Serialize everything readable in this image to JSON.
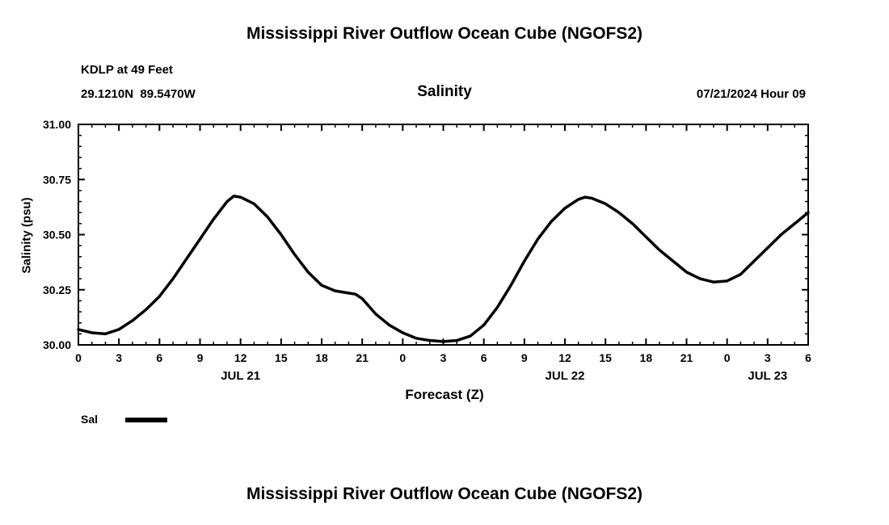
{
  "page": {
    "top_title": "Mississippi River Outflow Ocean Cube (NGOFS2)",
    "bottom_title": "Mississippi River Outflow Ocean Cube (NGOFS2)"
  },
  "header": {
    "station": "KDLP at 49 Feet",
    "coordinates": "29.1210N  89.5470W",
    "plot_title": "Salinity",
    "datetime": "07/21/2024 Hour 09"
  },
  "legend": {
    "label": "Sal",
    "color": "#000000"
  },
  "chart_data": {
    "type": "line",
    "title": "Salinity",
    "xlabel": "Forecast (Z)",
    "ylabel": "Salinity (psu)",
    "ylim": [
      30.0,
      31.0
    ],
    "xlim": [
      0,
      54
    ],
    "grid": false,
    "legend_position": "bottom-left",
    "line_color": "#000000",
    "ytick_values": [
      30.0,
      30.25,
      30.5,
      30.75,
      31.0
    ],
    "ytick_labels": [
      "30.00",
      "30.25",
      "30.50",
      "30.75",
      "31.00"
    ],
    "xtick_hours": [
      0,
      3,
      6,
      9,
      12,
      15,
      18,
      21,
      24,
      27,
      30,
      33,
      36,
      39,
      42,
      45,
      48,
      51,
      54
    ],
    "xtick_labels": [
      "0",
      "3",
      "6",
      "9",
      "12",
      "15",
      "18",
      "21",
      "0",
      "3",
      "6",
      "9",
      "12",
      "15",
      "18",
      "21",
      "0",
      "3",
      "6"
    ],
    "date_labels": [
      {
        "label": "JUL 21",
        "hour": 12
      },
      {
        "label": "JUL 22",
        "hour": 36
      },
      {
        "label": "JUL 23",
        "hour": 51
      }
    ],
    "series": [
      {
        "name": "Sal",
        "color": "#000000",
        "x": [
          0,
          1,
          2,
          3,
          4,
          5,
          6,
          7,
          8,
          9,
          10,
          11,
          11.5,
          12,
          13,
          14,
          15,
          16,
          17,
          18,
          19,
          20,
          20.5,
          21,
          22,
          23,
          24,
          25,
          26,
          27,
          28,
          29,
          30,
          31,
          32,
          33,
          34,
          35,
          36,
          37,
          37.5,
          38,
          39,
          40,
          41,
          42,
          43,
          44,
          45,
          46,
          47,
          48,
          49,
          50,
          51,
          52,
          53,
          54
        ],
        "y": [
          30.07,
          30.055,
          30.05,
          30.07,
          30.11,
          30.16,
          30.22,
          30.3,
          30.39,
          30.48,
          30.57,
          30.65,
          30.675,
          30.67,
          30.64,
          30.58,
          30.5,
          30.41,
          30.33,
          30.27,
          30.245,
          30.235,
          30.23,
          30.21,
          30.14,
          30.09,
          30.055,
          30.03,
          30.02,
          30.015,
          30.02,
          30.04,
          30.09,
          30.17,
          30.27,
          30.38,
          30.48,
          30.56,
          30.62,
          30.66,
          30.67,
          30.665,
          30.64,
          30.6,
          30.55,
          30.49,
          30.43,
          30.38,
          30.33,
          30.3,
          30.285,
          30.29,
          30.32,
          30.38,
          30.44,
          30.5,
          30.55,
          30.6
        ]
      }
    ]
  }
}
